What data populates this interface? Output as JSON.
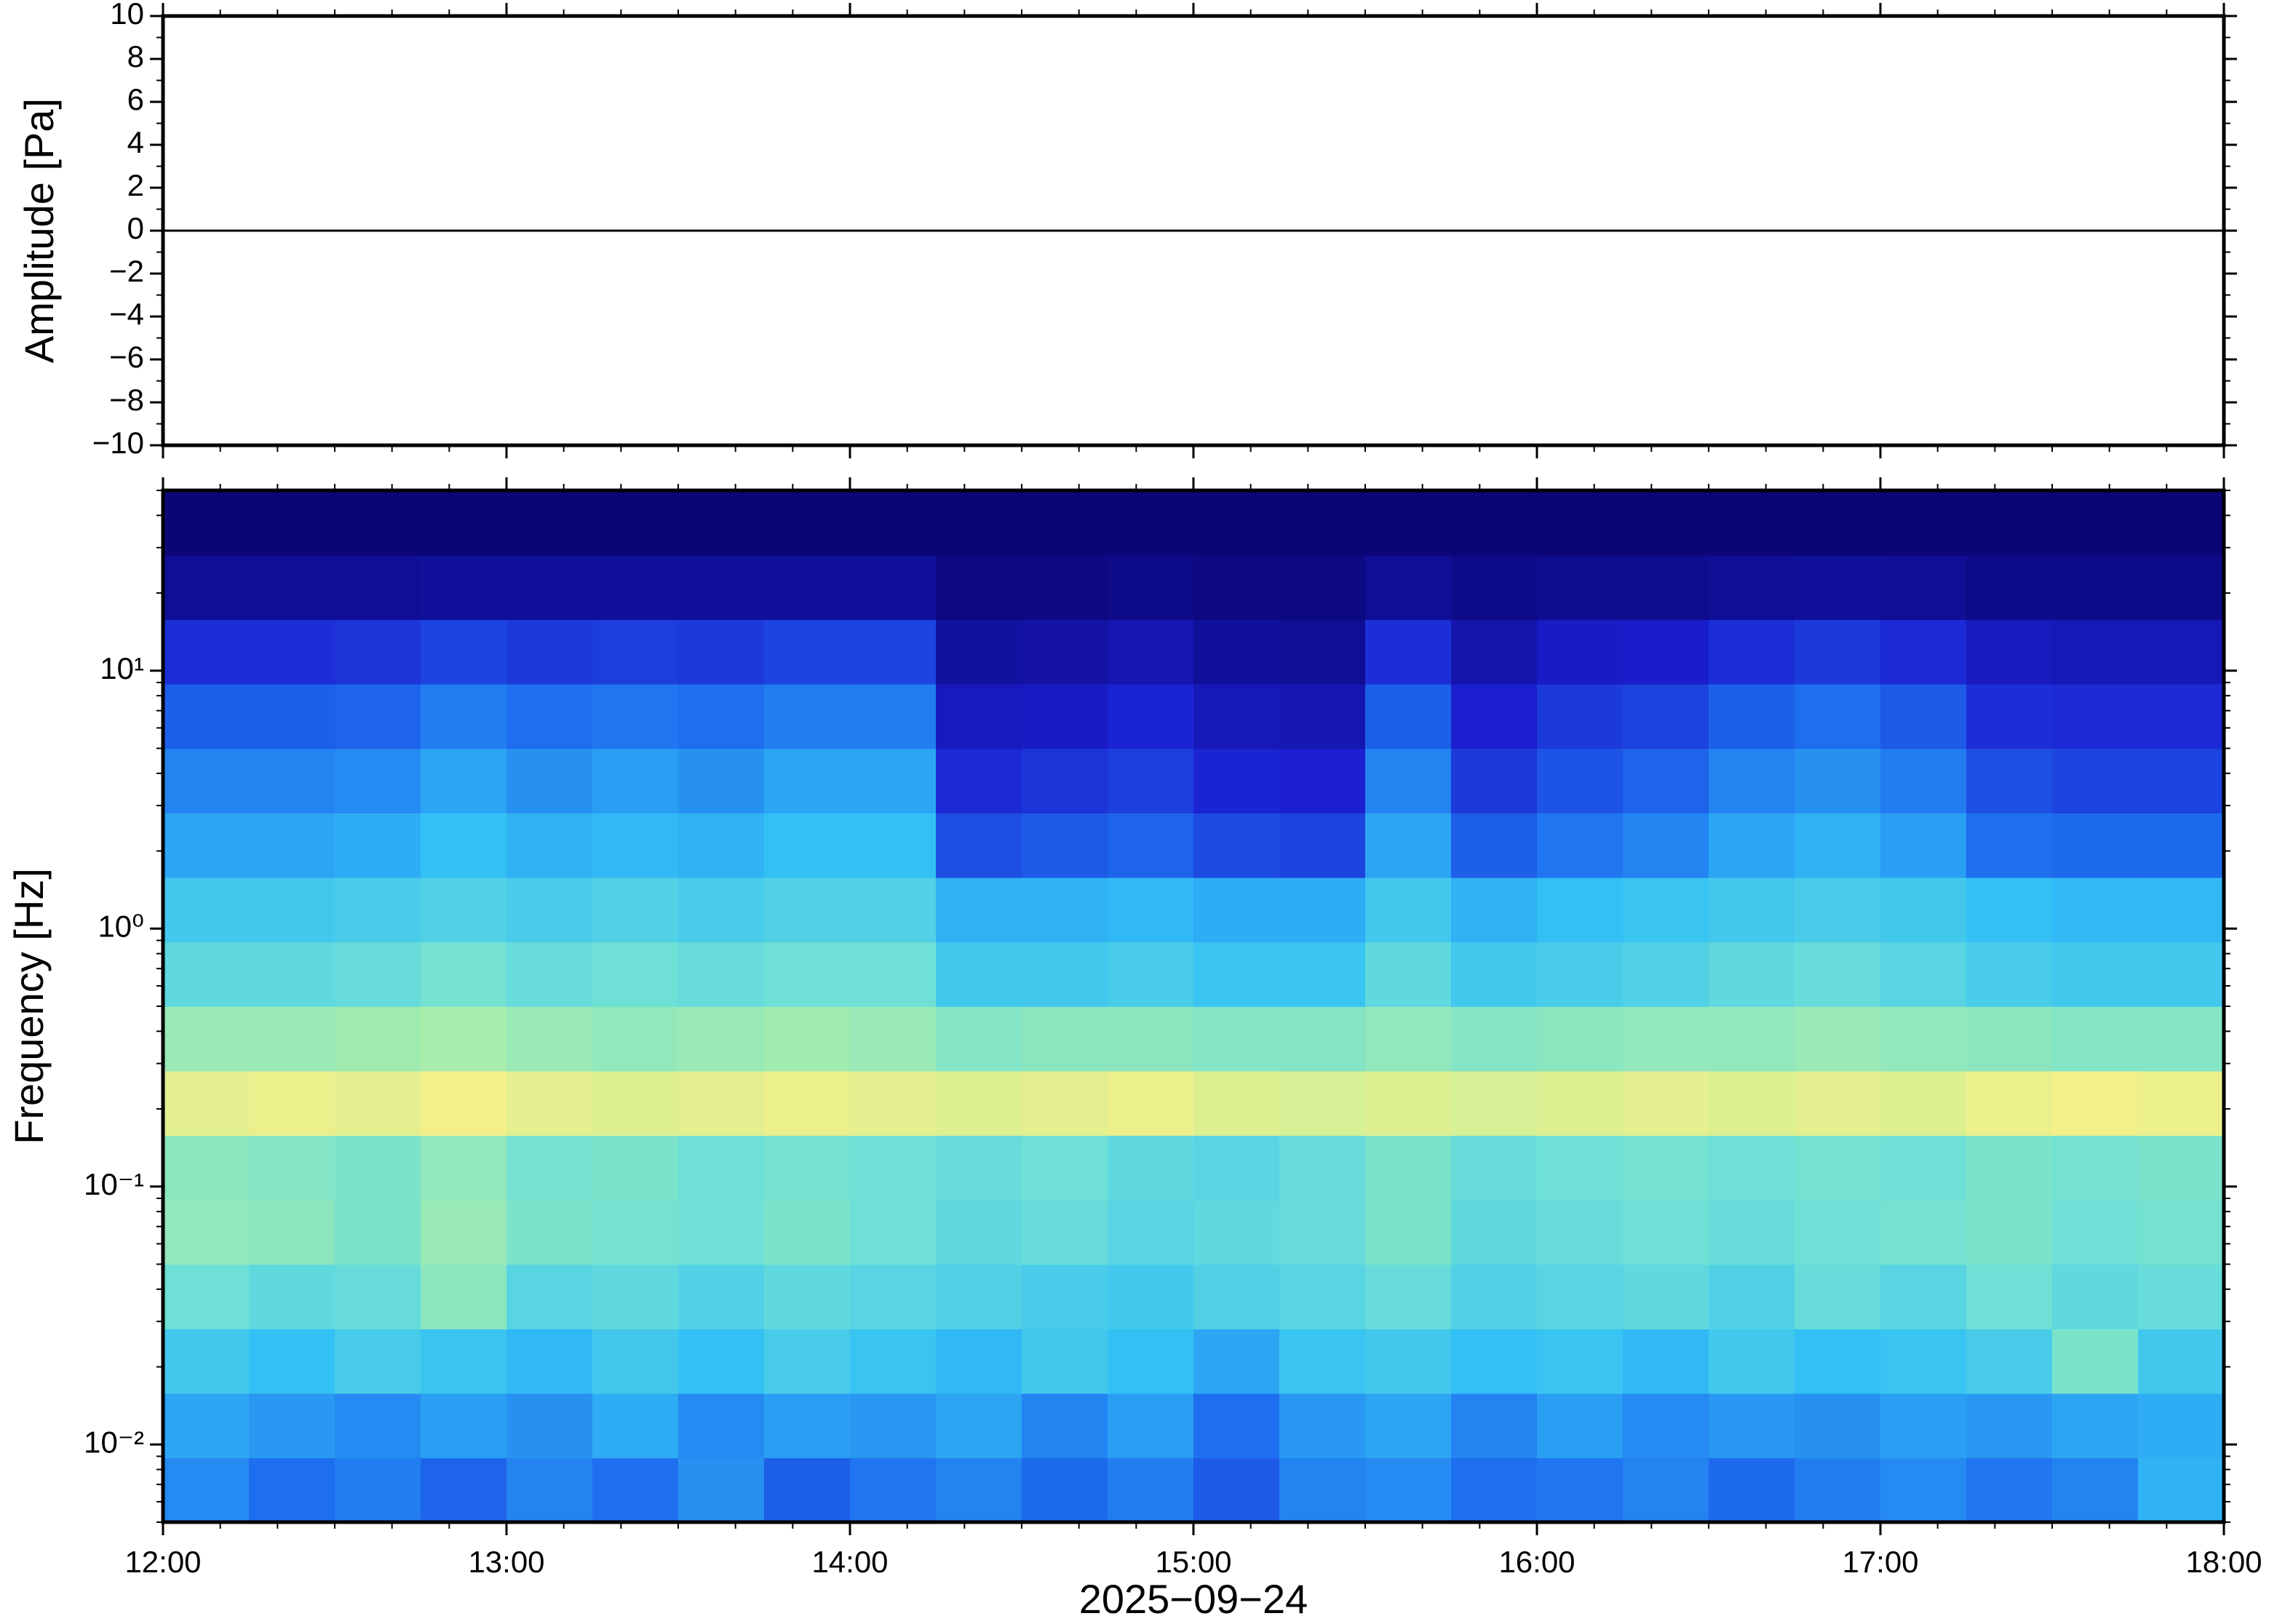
{
  "chart_data": [
    {
      "type": "line",
      "ylabel": "Amplitude [Pa]",
      "xlim": [
        12,
        18
      ],
      "xticks": [
        12,
        13,
        14,
        15,
        16,
        17,
        18
      ],
      "ylim": [
        -10,
        10
      ],
      "yticks": [
        {
          "value": -10,
          "label": "−10"
        },
        {
          "value": -8,
          "label": "−8"
        },
        {
          "value": -6,
          "label": "−6"
        },
        {
          "value": -4,
          "label": "−4"
        },
        {
          "value": -2,
          "label": "−2"
        },
        0,
        2,
        4,
        6,
        8,
        10
      ],
      "x": [
        12,
        12.25,
        12.5,
        12.75,
        13,
        13.25,
        13.5,
        13.75,
        14,
        14.25,
        14.5,
        14.75,
        15,
        15.25,
        15.5,
        15.75,
        16,
        16.25,
        16.5,
        16.75,
        17,
        17.25,
        17.5,
        17.75,
        18
      ],
      "series": [
        {
          "color": "#000000",
          "values": [
            0,
            0,
            0,
            0,
            0,
            0,
            0,
            0,
            0,
            0,
            0,
            0,
            0,
            0,
            0,
            0,
            0,
            0,
            0,
            0,
            0,
            0,
            0,
            0,
            0
          ]
        }
      ]
    },
    {
      "type": "heatmap",
      "ylabel": "Frequency [Hz]",
      "xlabel": "2025−09−24",
      "log_y": true,
      "xlim": [
        12,
        18
      ],
      "xticks": [
        {
          "value": 12,
          "label": "12:00"
        },
        {
          "value": 13,
          "label": "13:00"
        },
        {
          "value": 14,
          "label": "14:00"
        },
        {
          "value": 15,
          "label": "15:00"
        },
        {
          "value": 16,
          "label": "16:00"
        },
        {
          "value": 17,
          "label": "17:00"
        },
        {
          "value": 18,
          "label": "18:00"
        }
      ],
      "ylim": [
        0.005,
        50
      ],
      "yticks": [
        {
          "value": 0.01,
          "label": "10⁻²"
        },
        {
          "value": 0.1,
          "label": "10⁻¹"
        },
        {
          "value": 1,
          "label": "10⁰"
        },
        {
          "value": 10,
          "label": "10¹"
        }
      ],
      "xbins": [
        12,
        12.25,
        12.5,
        12.75,
        13,
        13.25,
        13.5,
        13.75,
        14,
        14.25,
        14.5,
        14.75,
        15,
        15.25,
        15.5,
        15.75,
        16,
        16.25,
        16.5,
        16.75,
        17,
        17.25,
        17.5,
        17.75,
        18
      ],
      "ybins": [
        0.005,
        0.00889,
        0.0158,
        0.0281,
        0.05,
        0.0889,
        0.158,
        0.281,
        0.5,
        0.889,
        1.58,
        2.81,
        5,
        8.89,
        15.8,
        28.1,
        50
      ],
      "zlim": [
        0,
        1
      ],
      "colormap": [
        [
          0,
          "#0b0677"
        ],
        [
          0.15,
          "#1b1fd0"
        ],
        [
          0.3,
          "#1e6fef"
        ],
        [
          0.42,
          "#33c0f5"
        ],
        [
          0.5,
          "#6ee0d6"
        ],
        [
          0.6,
          "#b6f0a0"
        ],
        [
          0.68,
          "#f3f08a"
        ],
        [
          0.8,
          "#f8a050"
        ],
        [
          1,
          "#d0302f"
        ]
      ],
      "values": [
        [
          0.34,
          0.3,
          0.32,
          0.28,
          0.33,
          0.3,
          0.35,
          0.27,
          0.31,
          0.33,
          0.29,
          0.32,
          0.26,
          0.33,
          0.34,
          0.3,
          0.31,
          0.33,
          0.29,
          0.32,
          0.34,
          0.31,
          0.33,
          0.4
        ],
        [
          0.38,
          0.36,
          0.34,
          0.37,
          0.35,
          0.39,
          0.34,
          0.37,
          0.36,
          0.38,
          0.33,
          0.37,
          0.3,
          0.36,
          0.38,
          0.33,
          0.37,
          0.34,
          0.36,
          0.35,
          0.37,
          0.36,
          0.38,
          0.39
        ],
        [
          0.44,
          0.42,
          0.45,
          0.43,
          0.41,
          0.44,
          0.42,
          0.45,
          0.43,
          0.41,
          0.44,
          0.42,
          0.38,
          0.43,
          0.44,
          0.42,
          0.43,
          0.41,
          0.44,
          0.42,
          0.43,
          0.45,
          0.52,
          0.44
        ],
        [
          0.5,
          0.48,
          0.49,
          0.54,
          0.47,
          0.48,
          0.46,
          0.48,
          0.47,
          0.46,
          0.45,
          0.44,
          0.46,
          0.47,
          0.49,
          0.46,
          0.47,
          0.48,
          0.46,
          0.49,
          0.47,
          0.5,
          0.48,
          0.49
        ],
        [
          0.55,
          0.54,
          0.52,
          0.56,
          0.52,
          0.51,
          0.5,
          0.52,
          0.5,
          0.48,
          0.49,
          0.47,
          0.48,
          0.49,
          0.52,
          0.48,
          0.49,
          0.5,
          0.49,
          0.5,
          0.51,
          0.52,
          0.5,
          0.51
        ],
        [
          0.54,
          0.53,
          0.52,
          0.55,
          0.51,
          0.52,
          0.5,
          0.51,
          0.5,
          0.49,
          0.5,
          0.48,
          0.47,
          0.49,
          0.52,
          0.49,
          0.5,
          0.51,
          0.5,
          0.51,
          0.5,
          0.52,
          0.51,
          0.52
        ],
        [
          0.66,
          0.67,
          0.66,
          0.68,
          0.66,
          0.65,
          0.66,
          0.67,
          0.66,
          0.65,
          0.66,
          0.67,
          0.65,
          0.64,
          0.65,
          0.64,
          0.65,
          0.66,
          0.65,
          0.66,
          0.65,
          0.67,
          0.68,
          0.67
        ],
        [
          0.56,
          0.56,
          0.57,
          0.58,
          0.56,
          0.55,
          0.56,
          0.57,
          0.56,
          0.53,
          0.54,
          0.54,
          0.53,
          0.53,
          0.55,
          0.53,
          0.54,
          0.55,
          0.55,
          0.56,
          0.55,
          0.54,
          0.53,
          0.53
        ],
        [
          0.48,
          0.48,
          0.49,
          0.51,
          0.49,
          0.5,
          0.49,
          0.5,
          0.5,
          0.44,
          0.44,
          0.45,
          0.43,
          0.43,
          0.48,
          0.44,
          0.45,
          0.46,
          0.48,
          0.49,
          0.47,
          0.45,
          0.44,
          0.44
        ],
        [
          0.44,
          0.44,
          0.45,
          0.46,
          0.45,
          0.46,
          0.45,
          0.46,
          0.46,
          0.4,
          0.4,
          0.41,
          0.39,
          0.39,
          0.44,
          0.4,
          0.42,
          0.43,
          0.44,
          0.45,
          0.44,
          0.42,
          0.41,
          0.41
        ],
        [
          0.38,
          0.38,
          0.39,
          0.42,
          0.4,
          0.41,
          0.4,
          0.42,
          0.42,
          0.24,
          0.26,
          0.28,
          0.23,
          0.22,
          0.38,
          0.27,
          0.31,
          0.33,
          0.38,
          0.4,
          0.37,
          0.3,
          0.29,
          0.29
        ],
        [
          0.33,
          0.33,
          0.34,
          0.38,
          0.35,
          0.37,
          0.35,
          0.38,
          0.38,
          0.17,
          0.19,
          0.21,
          0.16,
          0.15,
          0.33,
          0.2,
          0.25,
          0.28,
          0.33,
          0.35,
          0.32,
          0.24,
          0.22,
          0.22
        ],
        [
          0.27,
          0.27,
          0.28,
          0.32,
          0.3,
          0.31,
          0.3,
          0.32,
          0.32,
          0.12,
          0.13,
          0.16,
          0.11,
          0.1,
          0.27,
          0.15,
          0.2,
          0.22,
          0.27,
          0.3,
          0.26,
          0.18,
          0.17,
          0.17
        ],
        [
          0.18,
          0.18,
          0.19,
          0.22,
          0.2,
          0.21,
          0.2,
          0.22,
          0.22,
          0.07,
          0.08,
          0.1,
          0.06,
          0.05,
          0.18,
          0.09,
          0.13,
          0.14,
          0.18,
          0.2,
          0.17,
          0.12,
          0.11,
          0.11
        ],
        [
          0.05,
          0.05,
          0.05,
          0.06,
          0.06,
          0.06,
          0.06,
          0.06,
          0.06,
          0.02,
          0.02,
          0.03,
          0.02,
          0.02,
          0.05,
          0.03,
          0.04,
          0.04,
          0.05,
          0.06,
          0.05,
          0.03,
          0.03,
          0.03
        ],
        [
          0,
          0,
          0,
          0,
          0,
          0,
          0,
          0,
          0,
          0,
          0,
          0,
          0,
          0,
          0,
          0,
          0,
          0,
          0,
          0,
          0,
          0,
          0,
          0
        ]
      ]
    }
  ]
}
